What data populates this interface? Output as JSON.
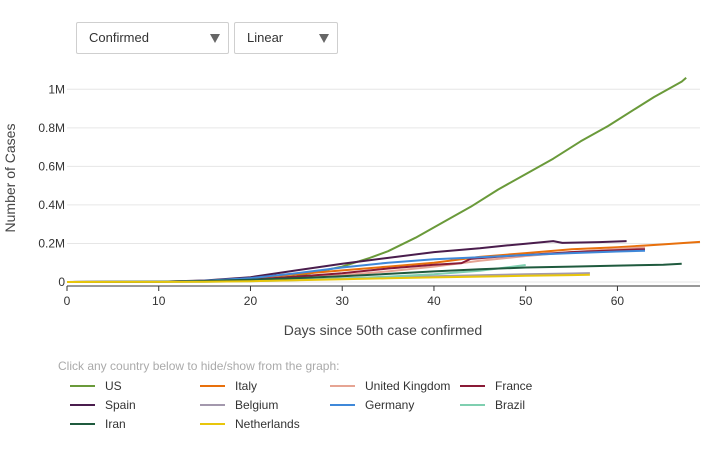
{
  "controls": {
    "metric_value": "Confirmed",
    "scale_value": "Linear"
  },
  "legend_hint": "Click any country below to hide/show from the graph:",
  "chart_data": {
    "type": "line",
    "xlabel": "Days since 50th case confirmed",
    "ylabel": "Number of Cases",
    "xlim": [
      0,
      69
    ],
    "ylim": [
      0,
      1100000
    ],
    "x_ticks": [
      0,
      10,
      20,
      30,
      40,
      50,
      60
    ],
    "y_ticks": [
      0,
      200000,
      400000,
      600000,
      800000,
      1000000
    ],
    "y_tick_labels": [
      "0",
      "0.2M",
      "0.4M",
      "0.6M",
      "0.8M",
      "1M"
    ],
    "grid": "horizontal",
    "legend_position": "bottom",
    "series": [
      {
        "name": "US",
        "color": "#6a9a3a",
        "points": [
          [
            0,
            100
          ],
          [
            10,
            1000
          ],
          [
            15,
            3000
          ],
          [
            20,
            9000
          ],
          [
            25,
            30000
          ],
          [
            30,
            80000
          ],
          [
            33,
            125000
          ],
          [
            35,
            160000
          ],
          [
            38,
            230000
          ],
          [
            41,
            310000
          ],
          [
            44,
            390000
          ],
          [
            47,
            480000
          ],
          [
            50,
            560000
          ],
          [
            53,
            640000
          ],
          [
            56,
            730000
          ],
          [
            59,
            810000
          ],
          [
            62,
            900000
          ],
          [
            64,
            960000
          ],
          [
            67,
            1040000
          ],
          [
            67.5,
            1060000
          ]
        ]
      },
      {
        "name": "Italy",
        "color": "#e8700c",
        "points": [
          [
            0,
            100
          ],
          [
            10,
            1500
          ],
          [
            15,
            6000
          ],
          [
            20,
            20000
          ],
          [
            25,
            40000
          ],
          [
            30,
            60000
          ],
          [
            35,
            80000
          ],
          [
            40,
            100000
          ],
          [
            45,
            130000
          ],
          [
            50,
            150000
          ],
          [
            55,
            170000
          ],
          [
            60,
            180000
          ],
          [
            65,
            195000
          ],
          [
            69,
            208000
          ]
        ]
      },
      {
        "name": "United Kingdom",
        "color": "#e6a493",
        "points": [
          [
            0,
            100
          ],
          [
            10,
            800
          ],
          [
            15,
            3000
          ],
          [
            20,
            8000
          ],
          [
            25,
            20000
          ],
          [
            30,
            35000
          ],
          [
            35,
            55000
          ],
          [
            40,
            80000
          ],
          [
            45,
            110000
          ],
          [
            50,
            135000
          ],
          [
            55,
            155000
          ],
          [
            60,
            172000
          ],
          [
            63,
            180000
          ]
        ]
      },
      {
        "name": "France",
        "color": "#8a1a36",
        "points": [
          [
            0,
            100
          ],
          [
            10,
            1000
          ],
          [
            15,
            5000
          ],
          [
            20,
            12000
          ],
          [
            25,
            28000
          ],
          [
            30,
            45000
          ],
          [
            35,
            70000
          ],
          [
            40,
            90000
          ],
          [
            43,
            98000
          ],
          [
            44,
            120000
          ],
          [
            48,
            135000
          ],
          [
            50,
            140000
          ],
          [
            55,
            155000
          ],
          [
            60,
            165000
          ],
          [
            63,
            170000
          ]
        ]
      },
      {
        "name": "Spain",
        "color": "#4a1d4d",
        "points": [
          [
            0,
            100
          ],
          [
            10,
            1500
          ],
          [
            15,
            8000
          ],
          [
            20,
            25000
          ],
          [
            25,
            60000
          ],
          [
            30,
            95000
          ],
          [
            35,
            125000
          ],
          [
            40,
            155000
          ],
          [
            45,
            175000
          ],
          [
            48,
            190000
          ],
          [
            50,
            198000
          ],
          [
            53,
            212000
          ],
          [
            54,
            203000
          ],
          [
            58,
            207000
          ],
          [
            61,
            212000
          ]
        ]
      },
      {
        "name": "Belgium",
        "color": "#a398ad",
        "points": [
          [
            0,
            100
          ],
          [
            10,
            500
          ],
          [
            15,
            2000
          ],
          [
            20,
            6000
          ],
          [
            25,
            12000
          ],
          [
            30,
            18000
          ],
          [
            35,
            25000
          ],
          [
            40,
            30000
          ],
          [
            45,
            35000
          ],
          [
            50,
            40000
          ],
          [
            55,
            44000
          ],
          [
            57,
            46000
          ]
        ]
      },
      {
        "name": "Germany",
        "color": "#3f88d9",
        "points": [
          [
            0,
            100
          ],
          [
            10,
            1500
          ],
          [
            15,
            7000
          ],
          [
            20,
            20000
          ],
          [
            25,
            45000
          ],
          [
            30,
            75000
          ],
          [
            35,
            100000
          ],
          [
            40,
            118000
          ],
          [
            45,
            128000
          ],
          [
            50,
            140000
          ],
          [
            55,
            150000
          ],
          [
            60,
            158000
          ],
          [
            63,
            162000
          ]
        ]
      },
      {
        "name": "Brazil",
        "color": "#7fcfb0",
        "points": [
          [
            0,
            100
          ],
          [
            10,
            500
          ],
          [
            15,
            1500
          ],
          [
            20,
            4000
          ],
          [
            25,
            10000
          ],
          [
            30,
            18000
          ],
          [
            35,
            28000
          ],
          [
            40,
            40000
          ],
          [
            45,
            58000
          ],
          [
            50,
            88000
          ]
        ]
      },
      {
        "name": "Iran",
        "color": "#1f5a3e",
        "points": [
          [
            0,
            100
          ],
          [
            10,
            1000
          ],
          [
            15,
            5000
          ],
          [
            20,
            12000
          ],
          [
            25,
            20000
          ],
          [
            30,
            30000
          ],
          [
            35,
            42000
          ],
          [
            40,
            55000
          ],
          [
            45,
            66000
          ],
          [
            50,
            75000
          ],
          [
            55,
            80000
          ],
          [
            60,
            85000
          ],
          [
            65,
            90000
          ],
          [
            67,
            95000
          ]
        ]
      },
      {
        "name": "Netherlands",
        "color": "#e8c60c",
        "points": [
          [
            0,
            100
          ],
          [
            10,
            500
          ],
          [
            15,
            1500
          ],
          [
            20,
            4000
          ],
          [
            25,
            9000
          ],
          [
            30,
            14000
          ],
          [
            35,
            19000
          ],
          [
            40,
            24000
          ],
          [
            45,
            28000
          ],
          [
            50,
            32000
          ],
          [
            55,
            36000
          ],
          [
            57,
            38000
          ]
        ]
      }
    ]
  }
}
